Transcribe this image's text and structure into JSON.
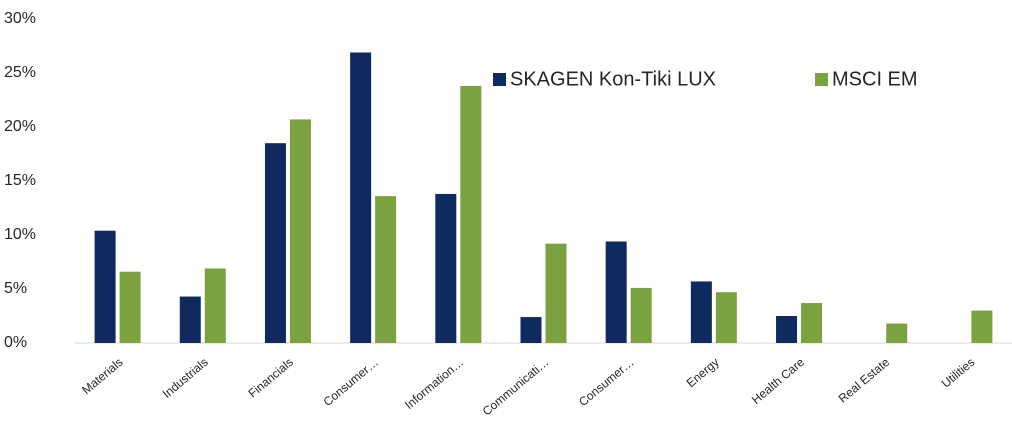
{
  "chart_data": {
    "type": "bar",
    "categories": [
      "Materials",
      "Industrials",
      "Financials",
      "Consumer…",
      "Information…",
      "Communicati…",
      "Consumer…",
      "Energy",
      "Health Care",
      "Real Estate",
      "Utilities"
    ],
    "series": [
      {
        "name": "SKAGEN Kon-Tiki LUX",
        "color": "#0f2a5e",
        "values": [
          10.4,
          4.3,
          18.5,
          26.9,
          13.8,
          2.4,
          9.4,
          5.7,
          2.5,
          0,
          0
        ]
      },
      {
        "name": "MSCI EM",
        "color": "#7aa33f",
        "values": [
          6.6,
          6.9,
          20.7,
          13.6,
          23.8,
          9.2,
          5.1,
          4.7,
          3.7,
          1.8,
          3.0
        ]
      }
    ],
    "ylim": [
      0,
      30
    ],
    "yticks": [
      {
        "value": 0,
        "label": "0%"
      },
      {
        "value": 5,
        "label": "5%"
      },
      {
        "value": 10,
        "label": "10%"
      },
      {
        "value": 15,
        "label": "15%"
      },
      {
        "value": 20,
        "label": "20%"
      },
      {
        "value": 25,
        "label": "25%"
      },
      {
        "value": 30,
        "label": "30%"
      }
    ],
    "legend": "top-right"
  }
}
